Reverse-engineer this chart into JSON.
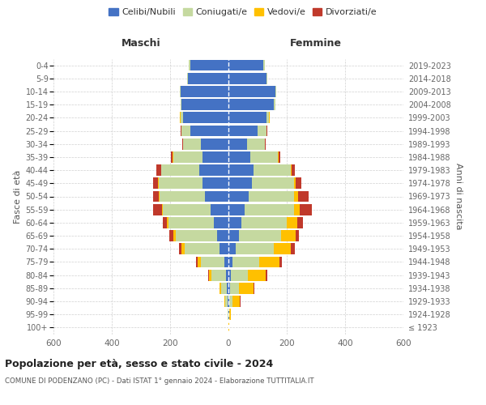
{
  "age_groups": [
    "100+",
    "95-99",
    "90-94",
    "85-89",
    "80-84",
    "75-79",
    "70-74",
    "65-69",
    "60-64",
    "55-59",
    "50-54",
    "45-49",
    "40-44",
    "35-39",
    "30-34",
    "25-29",
    "20-24",
    "15-19",
    "10-14",
    "5-9",
    "0-4"
  ],
  "birth_years": [
    "≤ 1923",
    "1924-1928",
    "1929-1933",
    "1934-1938",
    "1939-1943",
    "1944-1948",
    "1949-1953",
    "1954-1958",
    "1959-1963",
    "1964-1968",
    "1969-1973",
    "1974-1978",
    "1979-1983",
    "1984-1988",
    "1989-1993",
    "1994-1998",
    "1999-2003",
    "2004-2008",
    "2009-2013",
    "2014-2018",
    "2019-2023"
  ],
  "maschi": {
    "celibi": [
      1,
      1,
      2,
      5,
      8,
      15,
      30,
      40,
      50,
      60,
      80,
      90,
      100,
      90,
      95,
      130,
      155,
      160,
      165,
      140,
      130
    ],
    "coniugati": [
      0,
      2,
      8,
      20,
      50,
      80,
      120,
      140,
      155,
      165,
      155,
      150,
      130,
      100,
      60,
      30,
      10,
      5,
      3,
      2,
      5
    ],
    "vedovi": [
      0,
      0,
      3,
      5,
      8,
      10,
      12,
      10,
      5,
      3,
      3,
      2,
      1,
      1,
      1,
      1,
      1,
      0,
      0,
      0,
      0
    ],
    "divorziati": [
      0,
      0,
      0,
      1,
      3,
      5,
      8,
      12,
      15,
      30,
      20,
      15,
      15,
      5,
      2,
      2,
      1,
      0,
      0,
      0,
      0
    ]
  },
  "femmine": {
    "nubili": [
      1,
      2,
      2,
      5,
      8,
      15,
      25,
      35,
      45,
      55,
      70,
      80,
      85,
      75,
      65,
      100,
      130,
      155,
      160,
      130,
      120
    ],
    "coniugate": [
      0,
      2,
      12,
      30,
      60,
      90,
      130,
      145,
      155,
      170,
      155,
      145,
      130,
      95,
      60,
      30,
      10,
      5,
      3,
      2,
      5
    ],
    "vedove": [
      1,
      5,
      25,
      50,
      60,
      70,
      60,
      50,
      35,
      20,
      15,
      5,
      3,
      2,
      1,
      1,
      1,
      0,
      0,
      0,
      0
    ],
    "divorziate": [
      0,
      0,
      2,
      3,
      5,
      8,
      12,
      12,
      20,
      40,
      35,
      20,
      10,
      5,
      3,
      2,
      1,
      0,
      0,
      0,
      0
    ]
  },
  "colors": {
    "celibi": "#4472c4",
    "coniugati": "#c5d9a0",
    "vedovi": "#ffc000",
    "divorziati": "#c0392b"
  },
  "title": "Popolazione per età, sesso e stato civile - 2024",
  "subtitle": "COMUNE DI PODENZANO (PC) - Dati ISTAT 1° gennaio 2024 - Elaborazione TUTTITALIA.IT",
  "ylabel_left": "Fasce di età",
  "ylabel_right": "Anni di nascita",
  "xlabel_left": "Maschi",
  "xlabel_right": "Femmine",
  "xlim": 600,
  "bg_color": "#ffffff",
  "grid_color": "#cccccc"
}
